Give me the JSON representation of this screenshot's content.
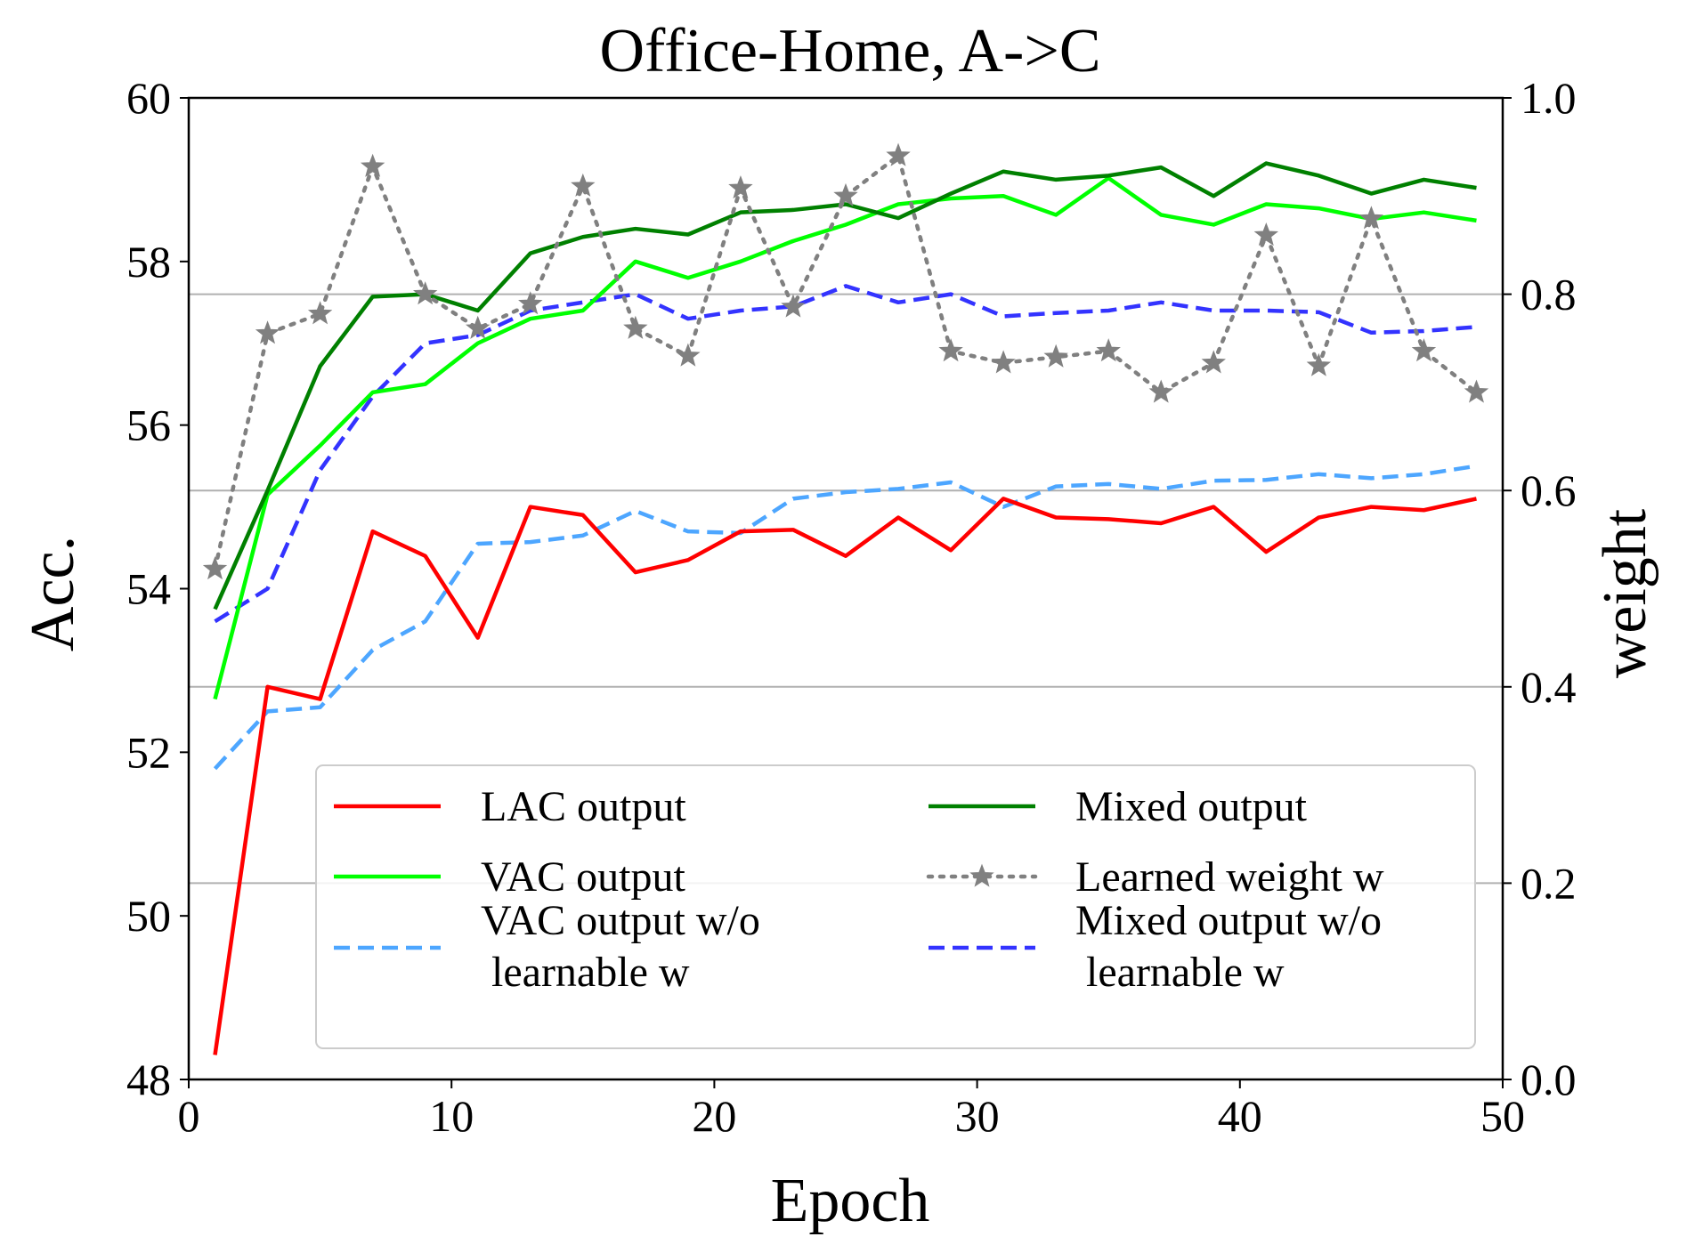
{
  "chart_data": {
    "type": "line",
    "title": "Office-Home, A->C",
    "xlabel": "Epoch",
    "ylabel": "Acc.",
    "y2label": "weight",
    "xlim": [
      0,
      50
    ],
    "ylim": [
      48,
      60
    ],
    "y2lim": [
      0.0,
      1.0
    ],
    "x_ticks": [
      "0",
      "10",
      "20",
      "30",
      "40",
      "50"
    ],
    "y_ticks": [
      "48",
      "50",
      "52",
      "54",
      "56",
      "58",
      "60"
    ],
    "y2_ticks": [
      "0.0",
      "0.2",
      "0.4",
      "0.6",
      "0.8",
      "1.0"
    ],
    "grid": "horizontal lines at right-axis ticks",
    "legend_position": "lower-right",
    "x": [
      1,
      3,
      5,
      7,
      9,
      11,
      13,
      15,
      17,
      19,
      21,
      23,
      25,
      27,
      29,
      31,
      33,
      35,
      37,
      39,
      41,
      43,
      45,
      47,
      49
    ],
    "series": [
      {
        "name": "LAC output",
        "axis": "left",
        "color": "#ff0000",
        "style": "solid",
        "values": [
          48.3,
          52.8,
          52.65,
          54.7,
          54.4,
          53.4,
          55.0,
          54.9,
          54.2,
          54.35,
          54.7,
          54.72,
          54.4,
          54.87,
          54.47,
          55.1,
          54.87,
          54.85,
          54.8,
          55.0,
          54.45,
          54.87,
          55.0,
          54.96,
          55.1
        ]
      },
      {
        "name": "VAC output",
        "axis": "left",
        "color": "#00ff00",
        "style": "solid",
        "values": [
          52.65,
          55.15,
          55.75,
          56.4,
          56.5,
          57.0,
          57.3,
          57.4,
          58.0,
          57.8,
          58.0,
          58.25,
          58.45,
          58.7,
          58.77,
          58.8,
          58.57,
          59.02,
          58.57,
          58.45,
          58.7,
          58.65,
          58.52,
          58.6,
          58.5
        ]
      },
      {
        "name": "VAC output w/o\n learnable w",
        "axis": "left",
        "color": "#4da6ff",
        "style": "dashed",
        "values": [
          51.8,
          52.5,
          52.55,
          53.25,
          53.6,
          54.55,
          54.57,
          54.65,
          54.95,
          54.7,
          54.68,
          55.1,
          55.18,
          55.22,
          55.3,
          55.0,
          55.25,
          55.28,
          55.22,
          55.32,
          55.33,
          55.4,
          55.35,
          55.4,
          55.5
        ]
      },
      {
        "name": "Mixed output",
        "axis": "left",
        "color": "#008000",
        "style": "solid",
        "values": [
          53.75,
          55.2,
          56.72,
          57.57,
          57.6,
          57.4,
          58.1,
          58.3,
          58.4,
          58.33,
          58.6,
          58.63,
          58.7,
          58.53,
          58.83,
          59.1,
          59.0,
          59.05,
          59.15,
          58.8,
          59.2,
          59.05,
          58.83,
          59.0,
          58.9
        ]
      },
      {
        "name": "Learned weight w",
        "axis": "right",
        "color": "#808080",
        "style": "dotted",
        "marker": "star",
        "values": [
          0.52,
          0.76,
          0.78,
          0.93,
          0.8,
          0.765,
          0.79,
          0.91,
          0.765,
          0.737,
          0.908,
          0.787,
          0.9,
          0.941,
          0.742,
          0.73,
          0.736,
          0.742,
          0.7,
          0.73,
          0.86,
          0.727,
          0.877,
          0.742,
          0.7
        ]
      },
      {
        "name": "Mixed output w/o\n learnable w",
        "axis": "left",
        "color": "#3333ff",
        "style": "dashed",
        "values": [
          53.6,
          54.0,
          55.45,
          56.35,
          57.0,
          57.1,
          57.4,
          57.5,
          57.6,
          57.3,
          57.4,
          57.45,
          57.7,
          57.5,
          57.6,
          57.33,
          57.37,
          57.4,
          57.5,
          57.4,
          57.4,
          57.38,
          57.13,
          57.15,
          57.2
        ]
      }
    ]
  }
}
